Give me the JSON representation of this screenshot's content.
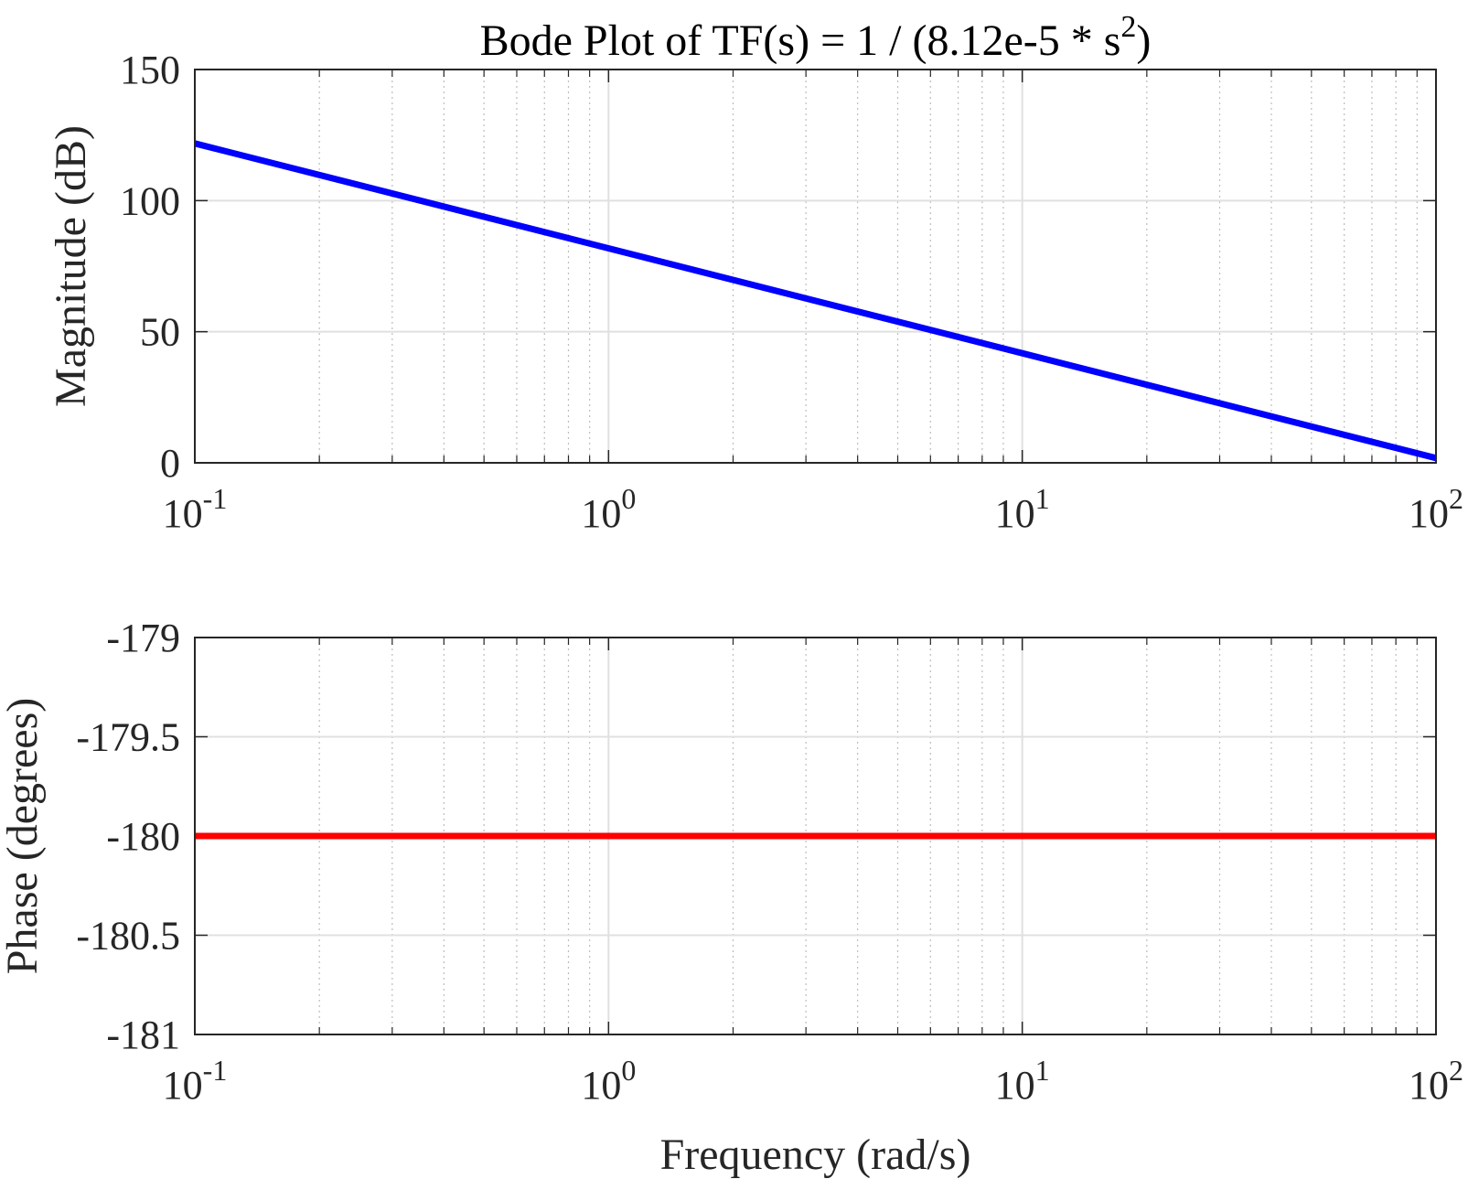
{
  "chart_data": [
    {
      "type": "line",
      "title": "Bode Plot of TF(s) = 1 / (8.12e-5 * s",
      "title_superscript": "2",
      "title_close": ")",
      "xlabel": "",
      "ylabel": "Magnitude (dB)",
      "x_scale": "log",
      "xlim": [
        0.1,
        100
      ],
      "ylim": [
        0,
        150
      ],
      "grid": true,
      "x_ticks": [
        {
          "base": "10",
          "exp": "-1",
          "value": 0.1
        },
        {
          "base": "10",
          "exp": "0",
          "value": 1
        },
        {
          "base": "10",
          "exp": "1",
          "value": 10
        },
        {
          "base": "10",
          "exp": "2",
          "value": 100
        }
      ],
      "y_ticks": [
        {
          "label": "0",
          "value": 0
        },
        {
          "label": "50",
          "value": 50
        },
        {
          "label": "100",
          "value": 100
        },
        {
          "label": "150",
          "value": 150
        }
      ],
      "series": [
        {
          "color": "#0000ff",
          "x": [
            0.1,
            1,
            10,
            100
          ],
          "y": [
            121.8,
            81.8,
            41.8,
            1.8
          ]
        }
      ]
    },
    {
      "type": "line",
      "title": "",
      "xlabel": "Frequency (rad/s)",
      "ylabel": "Phase (degrees)",
      "x_scale": "log",
      "xlim": [
        0.1,
        100
      ],
      "ylim": [
        -181,
        -179
      ],
      "grid": true,
      "x_ticks": [
        {
          "base": "10",
          "exp": "-1",
          "value": 0.1
        },
        {
          "base": "10",
          "exp": "0",
          "value": 1
        },
        {
          "base": "10",
          "exp": "1",
          "value": 10
        },
        {
          "base": "10",
          "exp": "2",
          "value": 100
        }
      ],
      "y_ticks": [
        {
          "label": "-181",
          "value": -181
        },
        {
          "label": "-180.5",
          "value": -180.5
        },
        {
          "label": "-180",
          "value": -180
        },
        {
          "label": "-179.5",
          "value": -179.5
        },
        {
          "label": "-179",
          "value": -179
        }
      ],
      "series": [
        {
          "color": "#ff0000",
          "x": [
            0.1,
            100
          ],
          "y": [
            -180,
            -180
          ]
        }
      ]
    }
  ]
}
